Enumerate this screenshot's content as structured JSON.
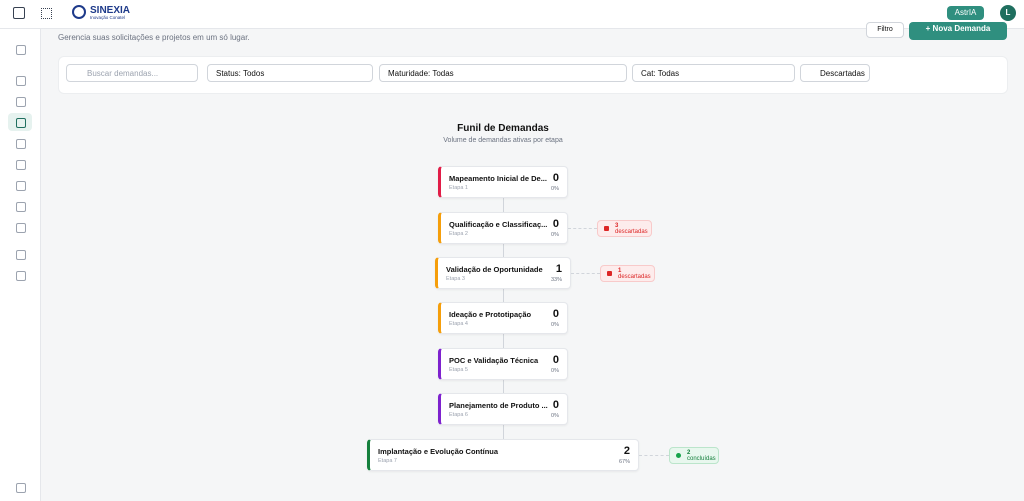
{
  "header": {
    "brand": "SINEXIA",
    "brand_sub": "Inovação Conatel",
    "assistant": "AstrIA",
    "avatar": "L"
  },
  "page": {
    "subtitle": "Gerencia suas solicitações e projetos em um só lugar.",
    "filter_button": "Filtro",
    "new_button": "+ Nova Demanda"
  },
  "filters": {
    "search_placeholder": "Buscar demandas...",
    "status": "Status: Todos",
    "maturity": "Maturidade: Todas",
    "category": "Cat: Todas",
    "discarded": "Descartadas"
  },
  "funnel": {
    "title": "Funil de Demandas",
    "subtitle": "Volume de demandas ativas por etapa",
    "stages": [
      {
        "name": "Mapeamento Inicial de De...",
        "step": "Etapa 1",
        "count": 0,
        "percent": "0%",
        "color": "#e11d48"
      },
      {
        "name": "Qualificação e Classificaç...",
        "step": "Etapa 2",
        "count": 0,
        "percent": "0%",
        "color": "#f59e0b",
        "badge": {
          "count": 3,
          "label": "descartadas"
        }
      },
      {
        "name": "Validação de Oportunidade",
        "step": "Etapa 3",
        "count": 1,
        "percent": "33%",
        "color": "#f59e0b",
        "badge": {
          "count": 1,
          "label": "descartadas"
        }
      },
      {
        "name": "Ideação e Prototipação",
        "step": "Etapa 4",
        "count": 0,
        "percent": "0%",
        "color": "#f59e0b"
      },
      {
        "name": "POC e Validação Técnica",
        "step": "Etapa 5",
        "count": 0,
        "percent": "0%",
        "color": "#7e22ce"
      },
      {
        "name": "Planejamento de Produto ...",
        "step": "Etapa 6",
        "count": 0,
        "percent": "0%",
        "color": "#7e22ce"
      },
      {
        "name": "Implantação e Evolução Contínua",
        "step": "Etapa 7",
        "count": 2,
        "percent": "67%",
        "color": "#15803d",
        "badge": {
          "count": 2,
          "label": "concluídas",
          "kind": "done"
        }
      }
    ]
  }
}
